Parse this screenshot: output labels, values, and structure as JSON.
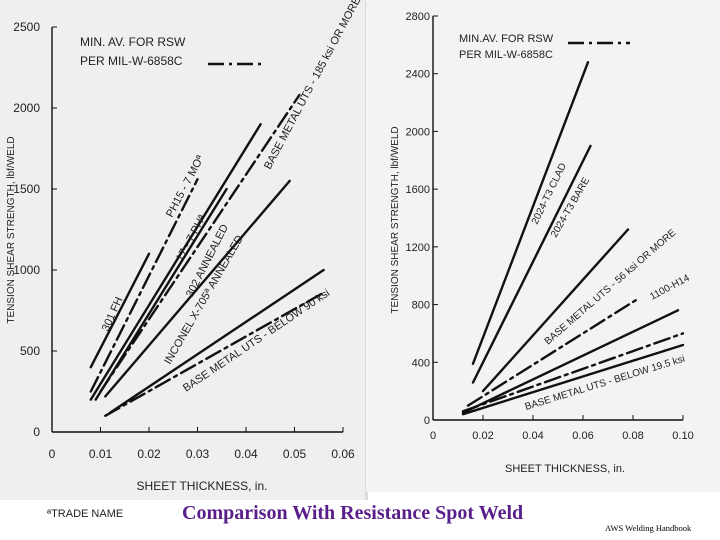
{
  "chart_data": [
    {
      "type": "line",
      "title": "",
      "xlabel": "SHEET THICKNESS, in.",
      "ylabel": "TENSION SHEAR STRENGTH, lbf/WELD",
      "xlim": [
        0,
        0.06
      ],
      "ylim": [
        0,
        2500
      ],
      "x_ticks": [
        0,
        0.01,
        0.02,
        0.03,
        0.04,
        0.05,
        0.06
      ],
      "x_tick_labels": [
        "0",
        "0.01",
        "0.02",
        "0.03",
        "0.04",
        "0.05",
        "0.06"
      ],
      "y_ticks": [
        0,
        500,
        1000,
        1500,
        2000,
        2500
      ],
      "y_tick_labels": [
        "0",
        "500",
        "1000",
        "1500",
        "2000",
        "2500"
      ],
      "grid": false,
      "legend": "top-left",
      "legend_entries": [
        {
          "label_line1": "MIN. AV. FOR RSW",
          "label_line2": "PER MIL-W-6858C",
          "style": "dash-dot"
        }
      ],
      "footnote": "ªTRADE NAME",
      "series": [
        {
          "name": "301 FH",
          "style": "solid",
          "x": [
            0.008,
            0.02
          ],
          "y": [
            400,
            1100
          ]
        },
        {
          "name": "PH15 - 7 MOª",
          "style": "solid",
          "x": [
            0.008,
            0.043
          ],
          "y": [
            200,
            1900
          ]
        },
        {
          "name": "17 - 7 PHª",
          "style": "dash-dot",
          "x": [
            0.008,
            0.03
          ],
          "y": [
            250,
            1560
          ]
        },
        {
          "name": "302 ANNEALED",
          "style": "solid",
          "x": [
            0.009,
            0.036
          ],
          "y": [
            200,
            1500
          ]
        },
        {
          "name": "BASE METAL UTS - 185 ksi OR MORE",
          "style": "dash-dot",
          "x": [
            0.01,
            0.051
          ],
          "y": [
            250,
            2080
          ]
        },
        {
          "name": "INCONEL X-705ª ANNEALED",
          "style": "solid",
          "x": [
            0.011,
            0.049
          ],
          "y": [
            220,
            1550
          ]
        },
        {
          "name": "BASE METAL UTS - BELOW 90 ksi",
          "style": "solid",
          "x": [
            0.012,
            0.056
          ],
          "y": [
            120,
            1000
          ]
        },
        {
          "name": "",
          "style": "dash-dot",
          "x": [
            0.011,
            0.056
          ],
          "y": [
            100,
            860
          ]
        }
      ]
    },
    {
      "type": "line",
      "title": "",
      "xlabel": "SHEET THICKNESS, in.",
      "ylabel": "TENSION SHEAR STRENGTH, lbf/WELD",
      "xlim": [
        0,
        0.1
      ],
      "ylim": [
        0,
        2800
      ],
      "x_ticks": [
        0,
        0.02,
        0.04,
        0.06,
        0.08,
        0.1
      ],
      "x_tick_labels": [
        "0",
        "0.02",
        "0.04",
        "0.06",
        "0.08",
        "0.10"
      ],
      "y_ticks": [
        0,
        400,
        800,
        1200,
        1600,
        2000,
        2400,
        2800
      ],
      "y_tick_labels": [
        "0",
        "400",
        "800",
        "1200",
        "1600",
        "2000",
        "2400",
        "2800"
      ],
      "grid": false,
      "legend": "top-left",
      "legend_entries": [
        {
          "label_line1": "MIN.AV. FOR RSW",
          "label_line2": "PER MIL-W-6858C",
          "style": "dash-dot"
        }
      ],
      "series": [
        {
          "name": "2024-T3 CLAD",
          "style": "solid",
          "x": [
            0.016,
            0.062
          ],
          "y": [
            390,
            2480
          ]
        },
        {
          "name": "2024-T3 BARE",
          "style": "solid",
          "x": [
            0.016,
            0.063
          ],
          "y": [
            260,
            1900
          ]
        },
        {
          "name": "BASE METAL UTS - 56 ksi OR MORE",
          "style": "solid",
          "x": [
            0.02,
            0.078
          ],
          "y": [
            200,
            1320
          ]
        },
        {
          "name": "1100-H14",
          "style": "dash-dot",
          "x": [
            0.014,
            0.082
          ],
          "y": [
            100,
            840
          ]
        },
        {
          "name": "",
          "style": "solid",
          "x": [
            0.012,
            0.098
          ],
          "y": [
            50,
            760
          ]
        },
        {
          "name": "BASE METAL UTS - BELOW 19.5 ksi",
          "style": "dash-dot",
          "x": [
            0.012,
            0.1
          ],
          "y": [
            60,
            600
          ]
        },
        {
          "name": "",
          "style": "solid",
          "x": [
            0.012,
            0.1
          ],
          "y": [
            40,
            520
          ]
        }
      ]
    }
  ],
  "caption": "Comparison With Resistance Spot Weld",
  "credit": "AWS Welding Handbook"
}
